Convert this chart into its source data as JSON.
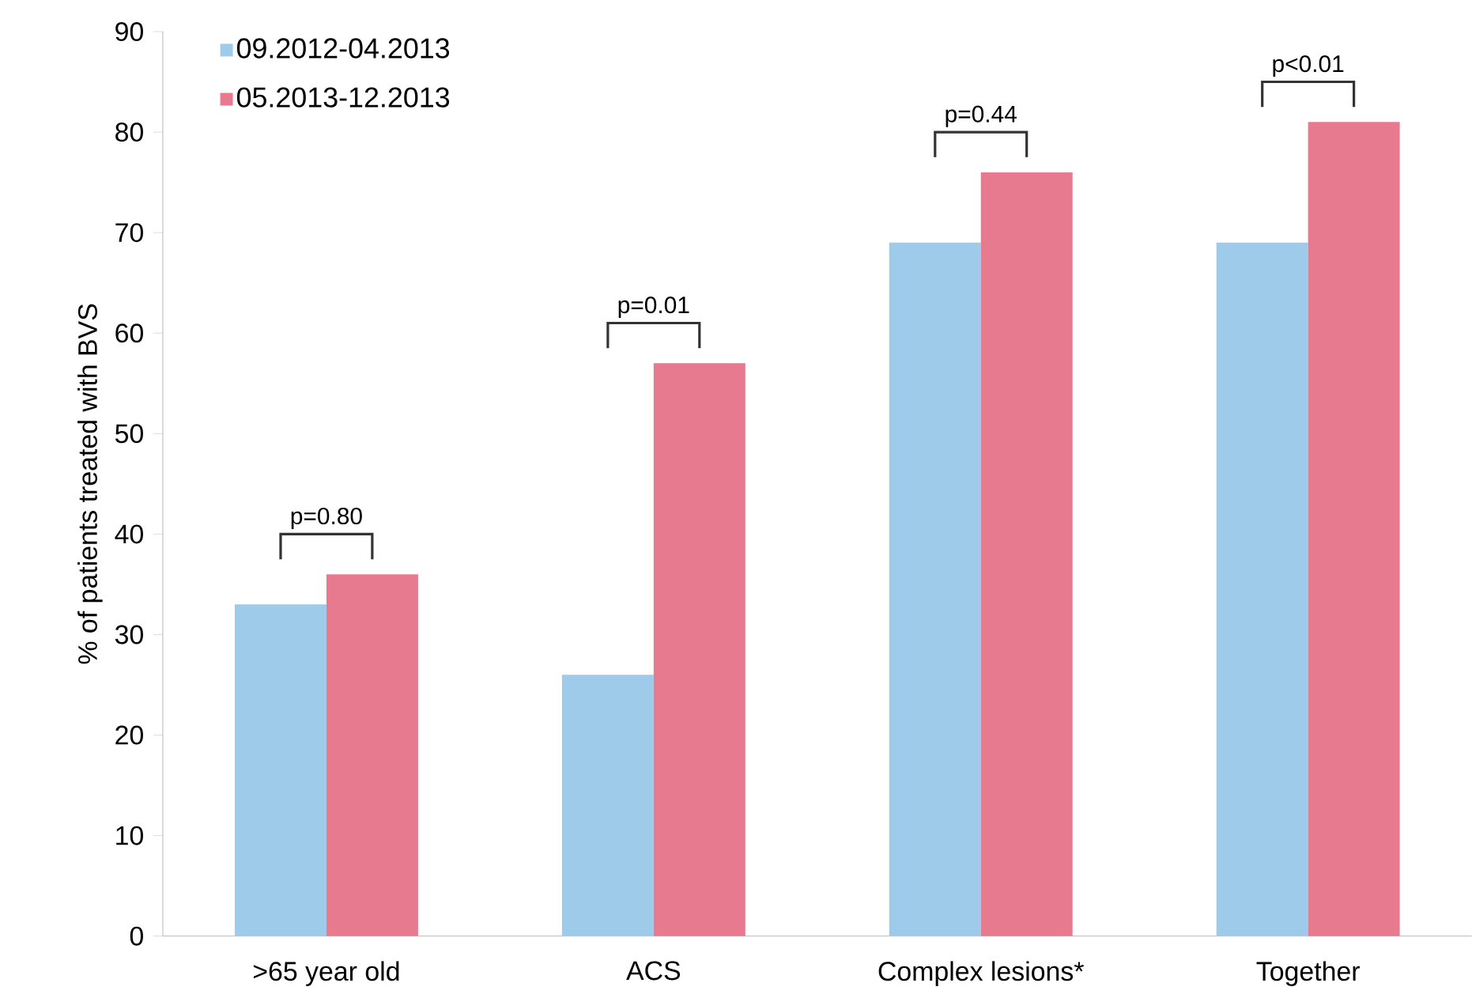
{
  "chart_data": {
    "type": "bar",
    "ylabel": "% of patients treated with BVS",
    "categories": [
      ">65 year old",
      "ACS",
      "Complex lesions*",
      "Together"
    ],
    "series": [
      {
        "name": "09.2012-04.2013",
        "color": "#9fcbea",
        "values": [
          33,
          26,
          69,
          69
        ]
      },
      {
        "name": "05.2013-12.2013",
        "color": "#e87a90",
        "values": [
          36,
          57,
          76,
          81
        ]
      }
    ],
    "ylim": [
      0,
      90
    ],
    "yticks": [
      0,
      10,
      20,
      30,
      40,
      50,
      60,
      70,
      80,
      90
    ],
    "grid": false,
    "legend": "top left",
    "annotations": [
      "p=0.80",
      "p=0.01",
      "p=0.44",
      "p<0.01"
    ]
  }
}
